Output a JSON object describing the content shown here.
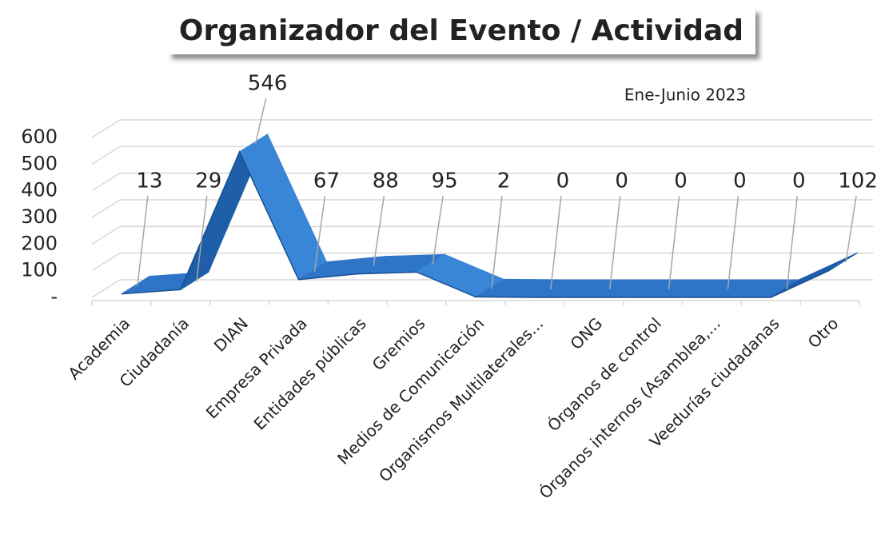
{
  "chart_data": {
    "type": "line",
    "title": "Organizador del Evento / Actividad",
    "subtitle": "Ene-Junio 2023",
    "categories": [
      "Academia",
      "Ciudadanía",
      "DIAN",
      "Empresa Privada",
      "Entidades públicas",
      "Gremios",
      "Medios de Comunicación",
      "Organismos Multilaterales...",
      "ONG",
      "Órganos de control",
      "Órganos internos (Asamblea,...",
      "Veedurías ciudadanas",
      "Otro"
    ],
    "series": [
      {
        "name": "Ene-Junio 2023",
        "color": "#2e75c8",
        "values": [
          13,
          29,
          546,
          67,
          88,
          95,
          2,
          0,
          0,
          0,
          0,
          0,
          102
        ]
      }
    ],
    "ylim": [
      0,
      600
    ],
    "yticks": [
      {
        "value": 0,
        "label": "-"
      },
      100,
      200,
      300,
      400,
      500,
      600
    ],
    "grid": true
  }
}
